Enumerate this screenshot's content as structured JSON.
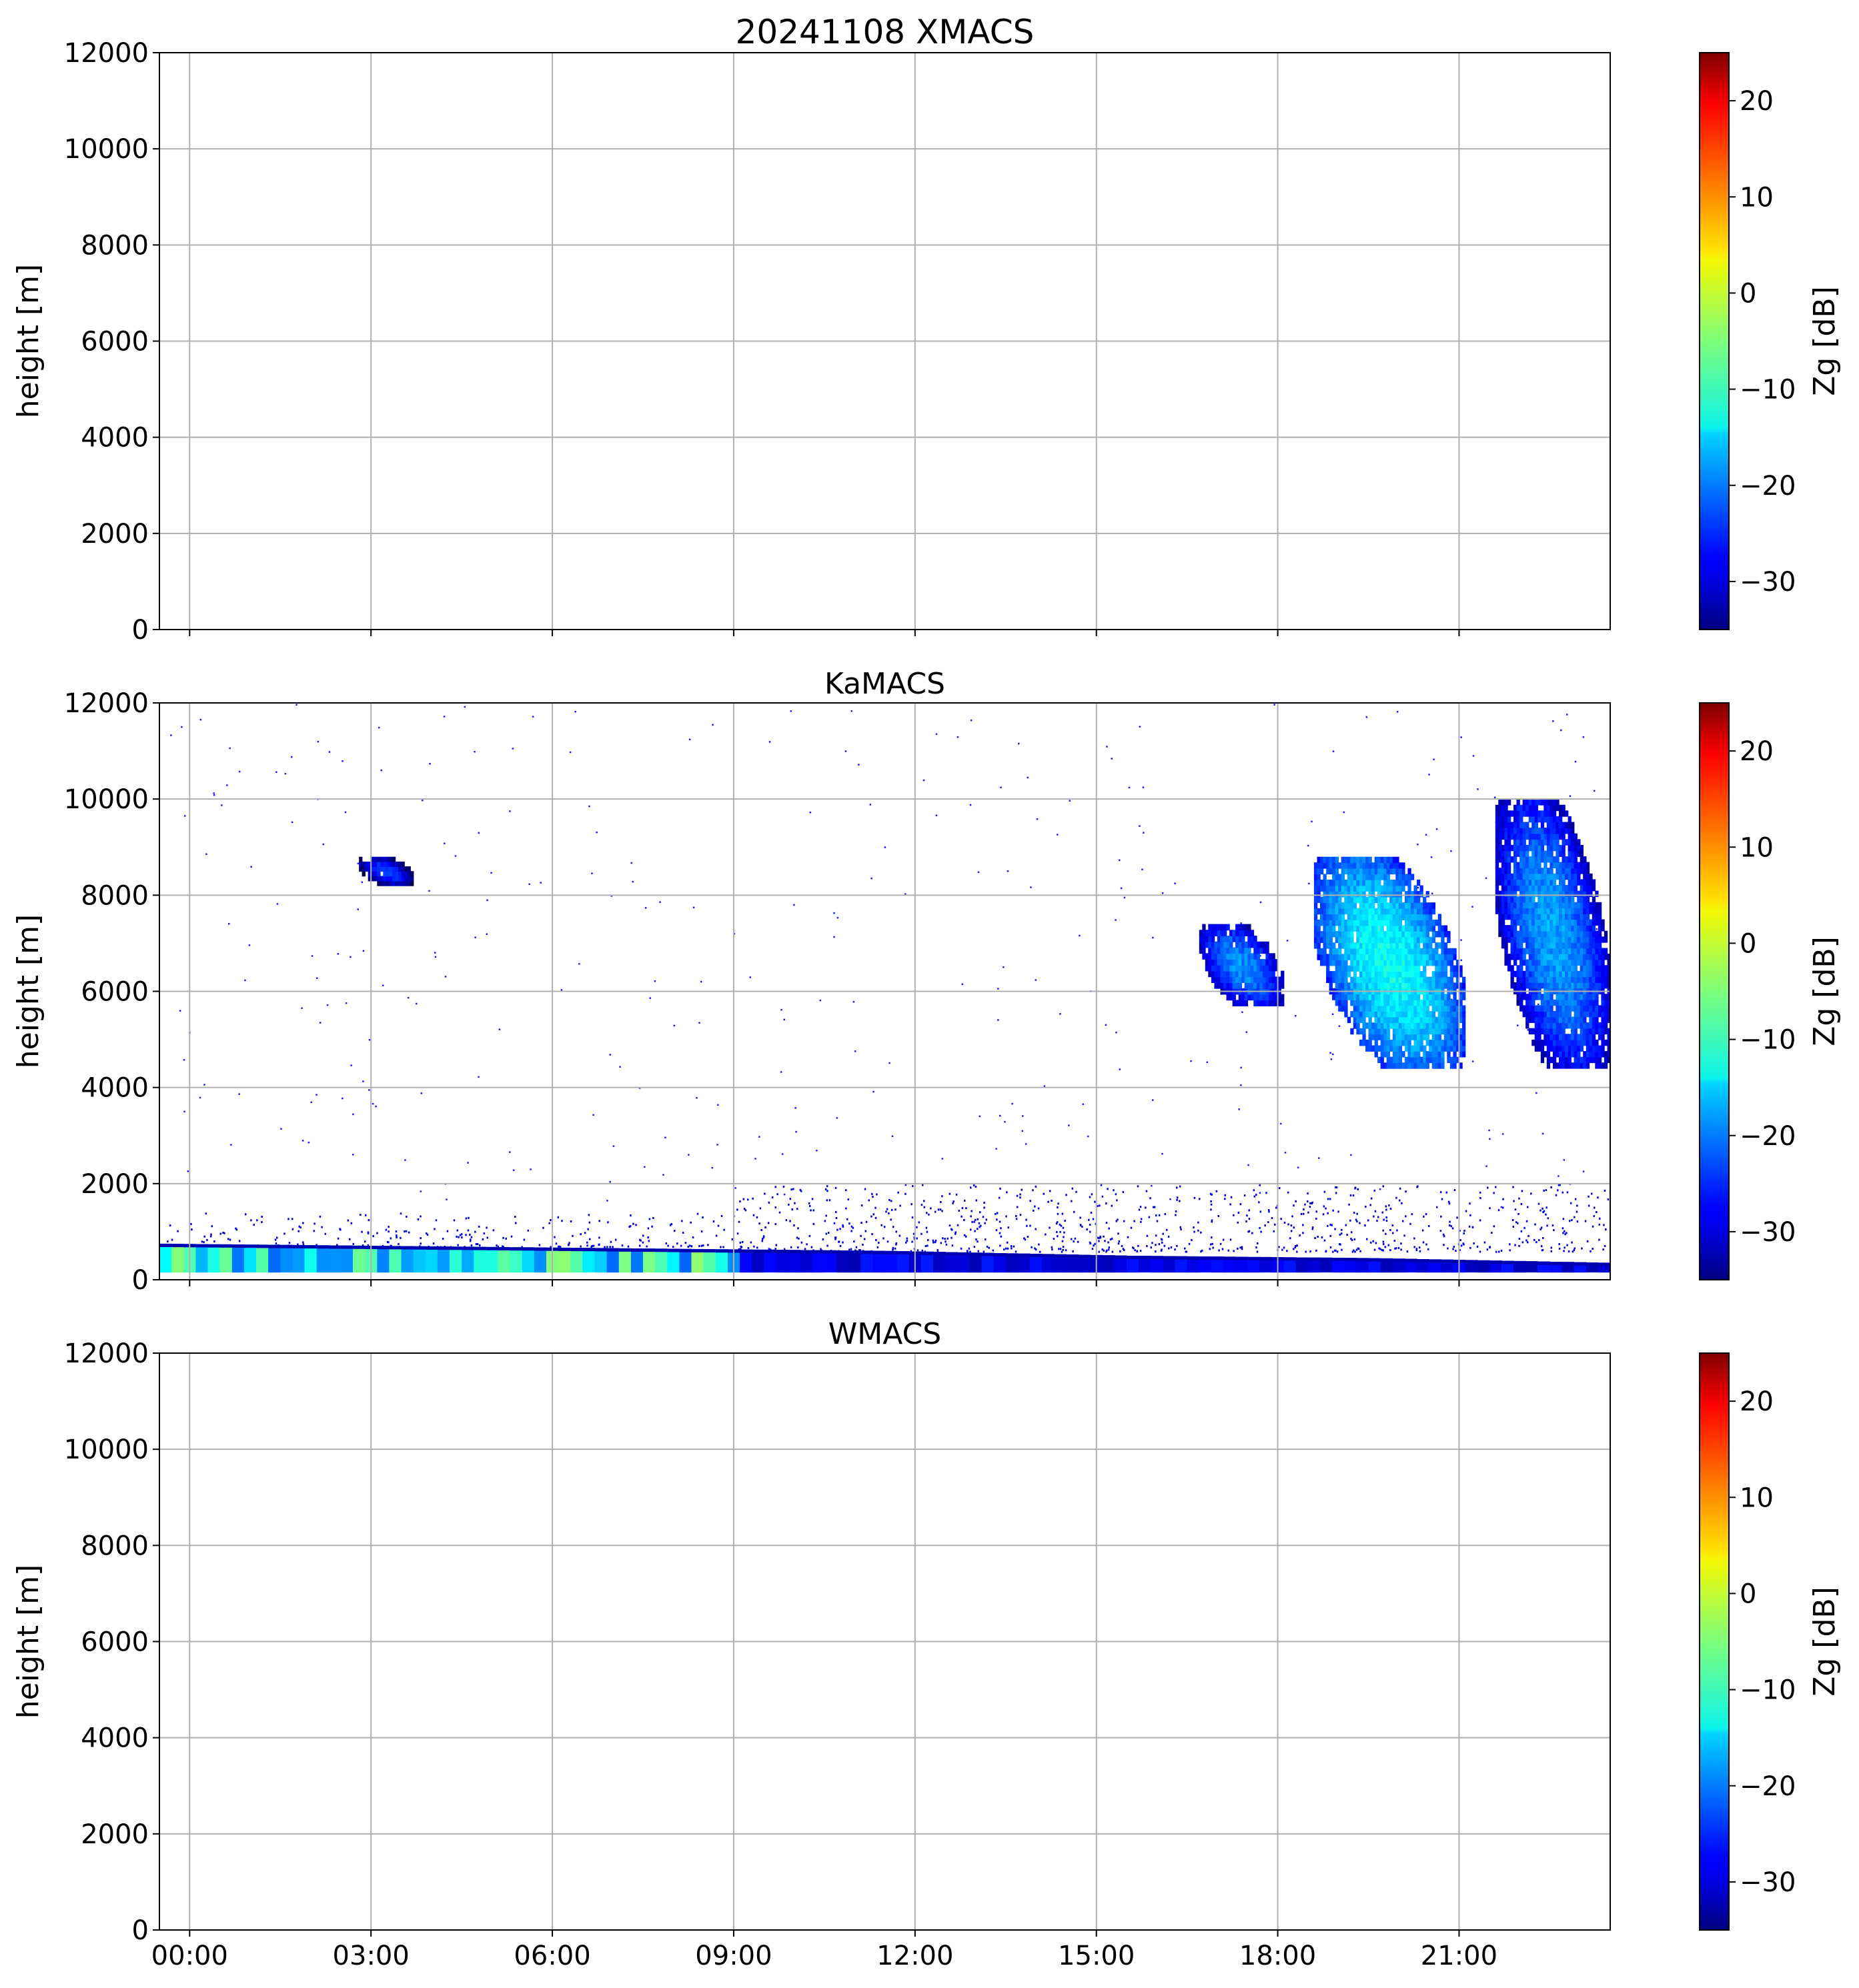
{
  "chart_data": [
    {
      "type": "heatmap",
      "title": "20241108 XMACS",
      "ylabel": "height [m]",
      "xlim": [
        "-00:30",
        "23:30"
      ],
      "ylim": [
        0,
        12000
      ],
      "yticks": [
        "0",
        "2000",
        "4000",
        "6000",
        "8000",
        "10000",
        "12000"
      ],
      "xticks": [
        "00:00",
        "03:00",
        "06:00",
        "09:00",
        "12:00",
        "15:00",
        "18:00",
        "21:00"
      ],
      "show_xtick_labels": false,
      "grid": true,
      "colorbar": {
        "label": "Zg [dB]",
        "colormap": "jet",
        "range": [
          -35,
          25
        ],
        "ticks": [
          "−30",
          "−20",
          "−10",
          "0",
          "10",
          "20"
        ]
      },
      "regions": []
    },
    {
      "type": "heatmap",
      "title": "KaMACS",
      "ylabel": "height [m]",
      "xlim": [
        "-00:30",
        "23:30"
      ],
      "ylim": [
        0,
        12000
      ],
      "yticks": [
        "0",
        "2000",
        "4000",
        "6000",
        "8000",
        "10000",
        "12000"
      ],
      "xticks": [
        "00:00",
        "03:00",
        "06:00",
        "09:00",
        "12:00",
        "15:00",
        "18:00",
        "21:00"
      ],
      "show_xtick_labels": false,
      "grid": true,
      "colorbar": {
        "label": "Zg [dB]",
        "colormap": "jet",
        "range": [
          -35,
          25
        ],
        "ticks": [
          "−30",
          "−20",
          "−10",
          "0",
          "10",
          "20"
        ]
      },
      "regions": [
        {
          "feature": "boundary layer echo",
          "t": [
            -0.5,
            23.5
          ],
          "z_bottom": [
            150,
            150,
            150,
            150,
            150,
            150,
            150
          ],
          "z_top": [
            750,
            700,
            650,
            600,
            500,
            450,
            350
          ],
          "zg": -22
        },
        {
          "feature": "cloud",
          "t": [
            2.8,
            3.7
          ],
          "z": [
            8200,
            8800
          ],
          "zg": -30
        },
        {
          "feature": "cloud",
          "t": [
            16.7,
            18.1
          ],
          "z": [
            5700,
            7400
          ],
          "zg": -25
        },
        {
          "feature": "cloud",
          "t": [
            18.6,
            21.1
          ],
          "z": [
            4400,
            8800
          ],
          "zg": -18
        },
        {
          "feature": "cloud",
          "t": [
            21.6,
            23.5
          ],
          "z": [
            4400,
            10000
          ],
          "zg": -24
        }
      ]
    },
    {
      "type": "heatmap",
      "title": "WMACS",
      "ylabel": "height [m]",
      "xlim": [
        "-00:30",
        "23:30"
      ],
      "ylim": [
        0,
        12000
      ],
      "yticks": [
        "0",
        "2000",
        "4000",
        "6000",
        "8000",
        "10000",
        "12000"
      ],
      "xticks": [
        "00:00",
        "03:00",
        "06:00",
        "09:00",
        "12:00",
        "15:00",
        "18:00",
        "21:00"
      ],
      "show_xtick_labels": true,
      "grid": true,
      "colorbar": {
        "label": "Zg [dB]",
        "colormap": "jet",
        "range": [
          -35,
          25
        ],
        "ticks": [
          "−30",
          "−20",
          "−10",
          "0",
          "10",
          "20"
        ]
      },
      "regions": []
    }
  ]
}
